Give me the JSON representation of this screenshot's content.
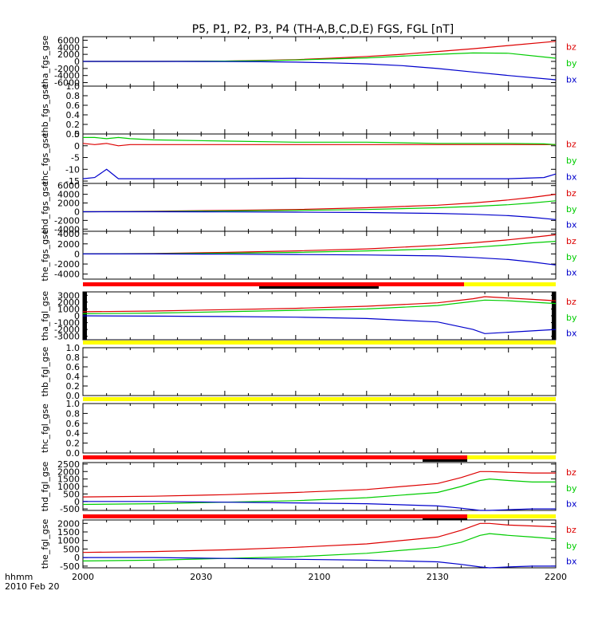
{
  "title": "P5, P1, P2, P3, P4 (TH-A,B,C,D,E) FGS, FGL [nT]",
  "time_axis": {
    "ticks": [
      "2000",
      "2030",
      "2100",
      "2130",
      "2200"
    ],
    "label_line1": "hhmm",
    "label_line2": "2010 Feb 20"
  },
  "colors": {
    "bx": "#0000cc",
    "by": "#00cc00",
    "bz": "#dd0000",
    "bar_red": "#ff0000",
    "bar_yellow": "#ffff00",
    "bar_black": "#000000"
  },
  "chart_data": [
    {
      "type": "line",
      "panel": "tha_fgs_gse",
      "ylabel": "tha_fgs_gse",
      "yticks": [
        -6000,
        -4000,
        -2000,
        0,
        2000,
        4000,
        6000
      ],
      "ylim": [
        -7000,
        7000
      ],
      "x": [
        0,
        30,
        60,
        75,
        90,
        105,
        120,
        135,
        150,
        165,
        180,
        200
      ],
      "series": [
        {
          "name": "bz",
          "values": [
            0,
            0,
            100,
            300,
            500,
            900,
            1400,
            2000,
            2800,
            3600,
            4500,
            5700
          ]
        },
        {
          "name": "by",
          "values": [
            0,
            0,
            100,
            200,
            400,
            700,
            1000,
            1500,
            2000,
            2400,
            2300,
            900
          ]
        },
        {
          "name": "bx",
          "values": [
            0,
            0,
            -50,
            -100,
            -200,
            -400,
            -700,
            -1200,
            -2000,
            -3000,
            -4000,
            -5200
          ]
        }
      ]
    },
    {
      "type": "line",
      "panel": "thb_fgs_gse",
      "ylabel": "thb_fgs_gse",
      "yticks": [
        0.0,
        0.2,
        0.4,
        0.6,
        0.8,
        1.0
      ],
      "ylim": [
        0,
        1.0
      ],
      "x": [],
      "series": []
    },
    {
      "type": "line",
      "panel": "thc_fgs_gse",
      "ylabel": "thc_fgs_gse",
      "yticks": [
        -15,
        -10,
        -5,
        0,
        5
      ],
      "ylim": [
        -16,
        5
      ],
      "x": [
        0,
        5,
        10,
        15,
        20,
        30,
        60,
        90,
        120,
        150,
        180,
        195,
        200
      ],
      "series": [
        {
          "name": "bz",
          "values": [
            1,
            0.5,
            1,
            0,
            0.5,
            0.5,
            0.5,
            0.5,
            0.5,
            0.5,
            0.5,
            0.5,
            0.5
          ]
        },
        {
          "name": "by",
          "values": [
            3.5,
            3.5,
            3,
            3.5,
            3,
            2.5,
            2,
            1.5,
            1.5,
            1,
            1,
            0.8,
            0.5
          ]
        },
        {
          "name": "bx",
          "values": [
            -14,
            -13.5,
            -10,
            -14,
            -14,
            -14,
            -14,
            -13.8,
            -14,
            -14,
            -14,
            -13.5,
            -12
          ]
        }
      ]
    },
    {
      "type": "line",
      "panel": "thd_fgs_gse",
      "ylabel": "thd_fgs_gse",
      "yticks": [
        -4000,
        -2000,
        0,
        2000,
        4000,
        6000
      ],
      "ylim": [
        -4500,
        6500
      ],
      "x": [
        0,
        30,
        60,
        90,
        120,
        150,
        165,
        180,
        190,
        200
      ],
      "series": [
        {
          "name": "bz",
          "values": [
            0,
            100,
            300,
            500,
            900,
            1500,
            2000,
            2700,
            3300,
            4000
          ]
        },
        {
          "name": "by",
          "values": [
            0,
            50,
            150,
            300,
            500,
            900,
            1200,
            1600,
            2000,
            2500
          ]
        },
        {
          "name": "bx",
          "values": [
            0,
            0,
            -50,
            -100,
            -200,
            -400,
            -600,
            -900,
            -1300,
            -1800
          ]
        }
      ]
    },
    {
      "type": "line",
      "panel": "the_fgs_gse",
      "ylabel": "the_fgs_gse",
      "yticks": [
        -4000,
        -2000,
        0,
        2000,
        4000
      ],
      "ylim": [
        -5000,
        4500
      ],
      "x": [
        0,
        30,
        60,
        90,
        120,
        150,
        165,
        180,
        190,
        200
      ],
      "series": [
        {
          "name": "bz",
          "values": [
            0,
            100,
            300,
            600,
            1000,
            1700,
            2200,
            2800,
            3300,
            3800
          ]
        },
        {
          "name": "by",
          "values": [
            0,
            50,
            150,
            300,
            600,
            1000,
            1300,
            1800,
            2200,
            2500
          ]
        },
        {
          "name": "bx",
          "values": [
            0,
            0,
            -50,
            -100,
            -200,
            -400,
            -700,
            -1100,
            -1600,
            -2200
          ]
        }
      ]
    },
    {
      "type": "line",
      "panel": "tha_fgl_gse",
      "ylabel": "tha_fgl_gse",
      "yticks": [
        -3000,
        -2000,
        -1000,
        0,
        1000,
        2000,
        3000
      ],
      "ylim": [
        -3500,
        3500
      ],
      "x": [
        0,
        30,
        60,
        90,
        120,
        150,
        165,
        170,
        180,
        190,
        200
      ],
      "series": [
        {
          "name": "bz",
          "values": [
            600,
            700,
            900,
            1100,
            1400,
            1900,
            2500,
            2800,
            2600,
            2400,
            2200
          ]
        },
        {
          "name": "by",
          "values": [
            300,
            400,
            600,
            800,
            1000,
            1500,
            2100,
            2300,
            2200,
            2000,
            1800
          ]
        },
        {
          "name": "bx",
          "values": [
            0,
            -50,
            -100,
            -200,
            -400,
            -900,
            -2000,
            -2600,
            -2400,
            -2200,
            -2000
          ]
        }
      ]
    },
    {
      "type": "line",
      "panel": "thb_fgl_gse",
      "ylabel": "thb_fgl_gse",
      "yticks": [
        0.0,
        0.2,
        0.4,
        0.6,
        0.8,
        1.0
      ],
      "ylim": [
        0,
        1.0
      ],
      "x": [],
      "series": []
    },
    {
      "type": "line",
      "panel": "thc_fgl_gse",
      "ylabel": "thc_fgl_gse",
      "yticks": [
        0.0,
        0.2,
        0.4,
        0.6,
        0.8,
        1.0
      ],
      "ylim": [
        0,
        1.0
      ],
      "x": [],
      "series": []
    },
    {
      "type": "line",
      "panel": "thd_fgl_gse",
      "ylabel": "thd_fgl_gse",
      "yticks": [
        -500,
        0,
        500,
        1000,
        1500,
        2000,
        2500
      ],
      "ylim": [
        -600,
        2600
      ],
      "x": [
        0,
        30,
        60,
        90,
        120,
        150,
        160,
        168,
        172,
        180,
        190,
        200
      ],
      "series": [
        {
          "name": "bz",
          "values": [
            300,
            350,
            450,
            600,
            800,
            1200,
            1600,
            2000,
            2000,
            1950,
            1900,
            1900
          ]
        },
        {
          "name": "by",
          "values": [
            -200,
            -150,
            -50,
            50,
            250,
            600,
            1000,
            1400,
            1500,
            1400,
            1300,
            1300
          ]
        },
        {
          "name": "bx",
          "values": [
            0,
            0,
            -50,
            -100,
            -150,
            -300,
            -450,
            -600,
            -600,
            -550,
            -500,
            -500
          ]
        }
      ]
    },
    {
      "type": "line",
      "panel": "the_fgl_gse",
      "ylabel": "the_fgl_gse",
      "yticks": [
        -500,
        0,
        500,
        1000,
        1500,
        2000
      ],
      "ylim": [
        -600,
        2200
      ],
      "x": [
        0,
        30,
        60,
        90,
        120,
        150,
        160,
        168,
        172,
        180,
        190,
        200
      ],
      "series": [
        {
          "name": "bz",
          "values": [
            300,
            350,
            450,
            600,
            800,
            1200,
            1600,
            2000,
            2000,
            1900,
            1850,
            1800
          ]
        },
        {
          "name": "by",
          "values": [
            -200,
            -150,
            -50,
            50,
            250,
            600,
            900,
            1300,
            1400,
            1300,
            1200,
            1100
          ]
        },
        {
          "name": "bx",
          "values": [
            0,
            0,
            -50,
            -100,
            -150,
            -250,
            -400,
            -550,
            -600,
            -550,
            -500,
            -500
          ]
        }
      ]
    }
  ]
}
